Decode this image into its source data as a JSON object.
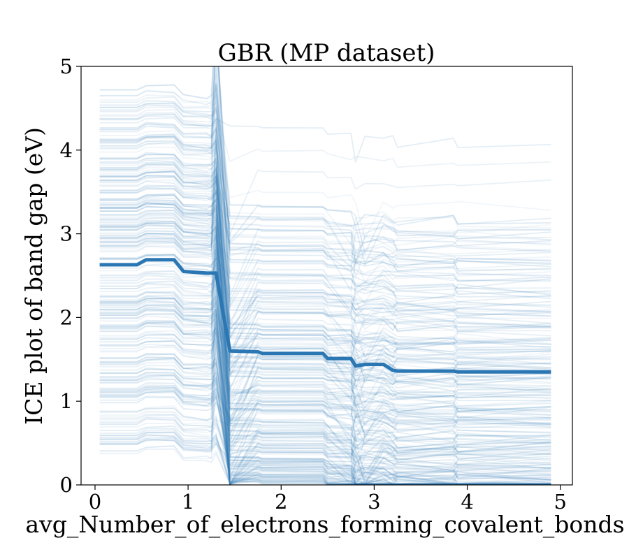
{
  "chart_data": {
    "type": "line",
    "title": "GBR (MP dataset)",
    "xlabel": "avg_Number_of_electrons_forming_covalent_bonds",
    "ylabel": "ICE plot of band gap (eV)",
    "xlim": [
      -0.15,
      5.13
    ],
    "ylim": [
      0,
      5
    ],
    "x_ticks": [
      "0",
      "1",
      "2",
      "3",
      "4",
      "5"
    ],
    "y_ticks": [
      "0",
      "1",
      "2",
      "3",
      "4",
      "5"
    ],
    "grid": false,
    "legend": "none",
    "line_color": "#2a77b4",
    "ice_curve_count": 260,
    "x": [
      0.05,
      0.45,
      0.55,
      0.85,
      0.95,
      1.2,
      1.25,
      1.3,
      1.45,
      1.75,
      1.8,
      2.45,
      2.5,
      2.75,
      2.8,
      2.9,
      3.1,
      3.2,
      3.25,
      3.85,
      3.9,
      4.9
    ],
    "average_curve": [
      2.63,
      2.63,
      2.69,
      2.69,
      2.55,
      2.53,
      2.53,
      2.53,
      1.6,
      1.59,
      1.57,
      1.57,
      1.51,
      1.51,
      1.42,
      1.44,
      1.44,
      1.37,
      1.36,
      1.36,
      1.35,
      1.35
    ]
  }
}
